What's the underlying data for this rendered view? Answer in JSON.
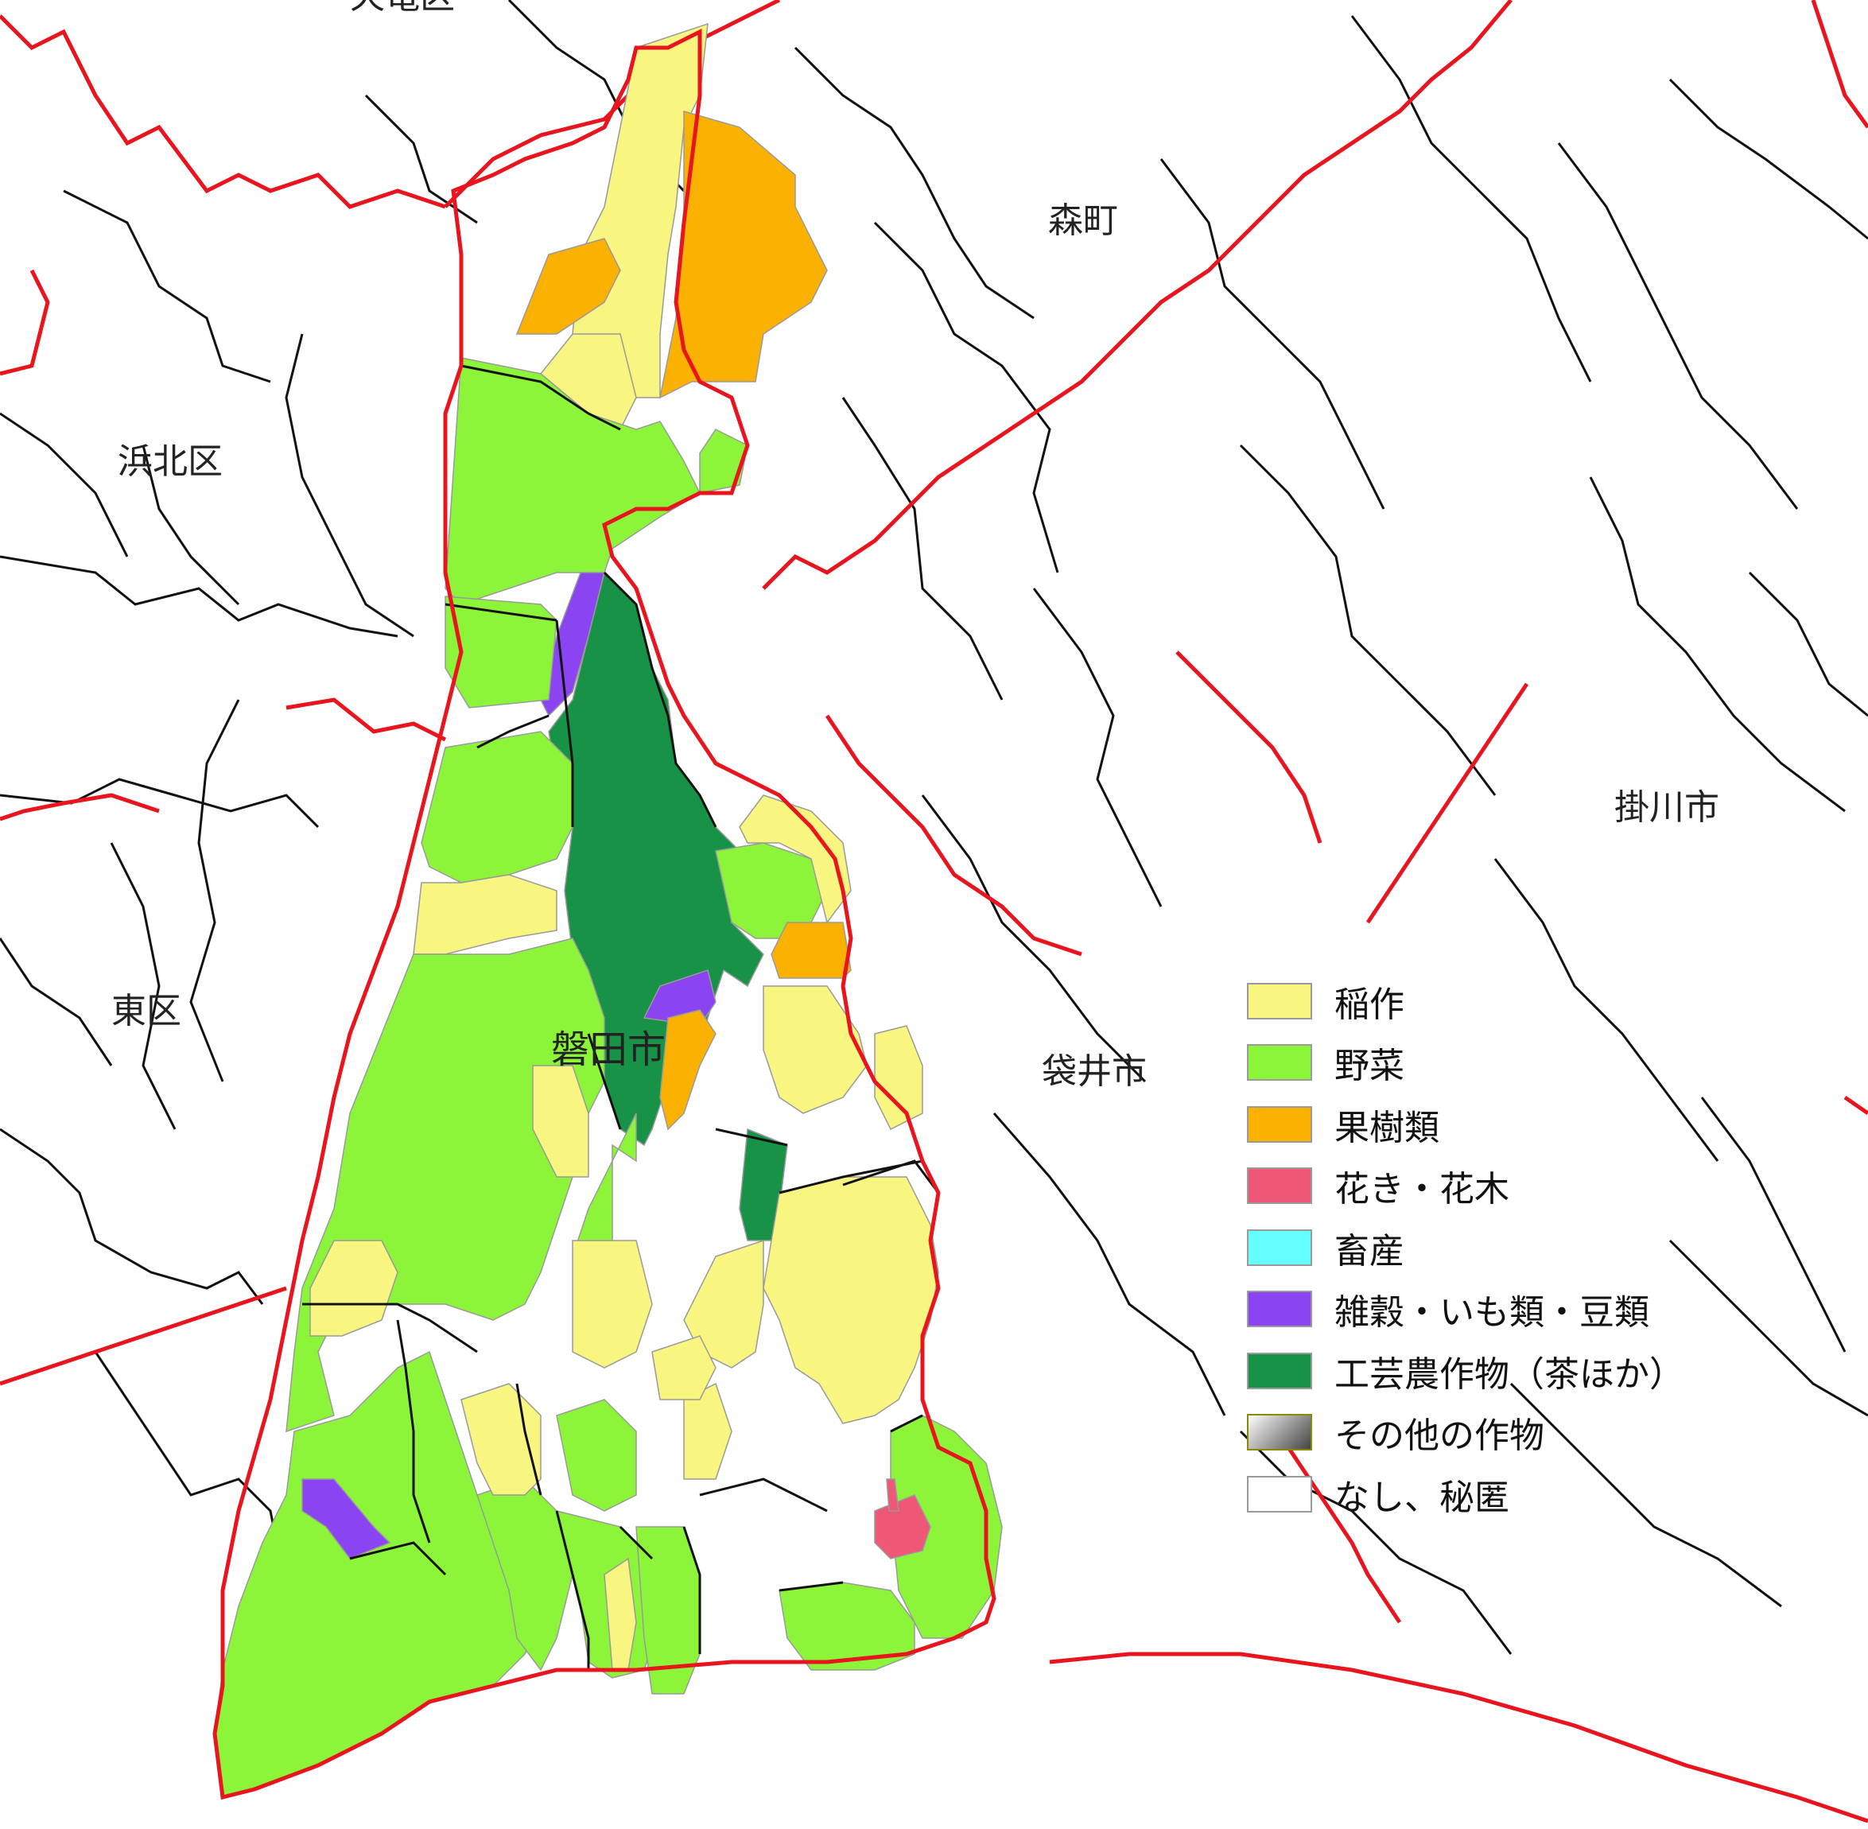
{
  "map": {
    "colors": {
      "municipal_border": "#e8141e",
      "district_border": "#111111",
      "subdistrict_border": "#9a9a9a"
    },
    "place_labels": [
      {
        "id": "tenryu",
        "text": "天竜区"
      },
      {
        "id": "mori",
        "text": "森町"
      },
      {
        "id": "hamakita",
        "text": "浜北区"
      },
      {
        "id": "higashi",
        "text": "東区"
      },
      {
        "id": "fukuroi",
        "text": "袋井市"
      },
      {
        "id": "kakegawa",
        "text": "掛川市"
      },
      {
        "id": "iwata",
        "text": "磐田市"
      }
    ]
  },
  "legend": {
    "items": [
      {
        "label": "稲作",
        "color": "#f8f580"
      },
      {
        "label": "野菜",
        "color": "#8cf53a"
      },
      {
        "label": "果樹類",
        "color": "#fbb100"
      },
      {
        "label": "花き・花木",
        "color": "#ef5777"
      },
      {
        "label": "畜産",
        "color": "#66ffff"
      },
      {
        "label": "雑穀・いも類・豆類",
        "color": "#8a44f2"
      },
      {
        "label": "工芸農作物（茶ほか）",
        "color": "#179247"
      },
      {
        "label": "その他の作物",
        "color": "gradient-gray"
      },
      {
        "label": "なし、秘匿",
        "color": "#ffffff"
      }
    ]
  }
}
